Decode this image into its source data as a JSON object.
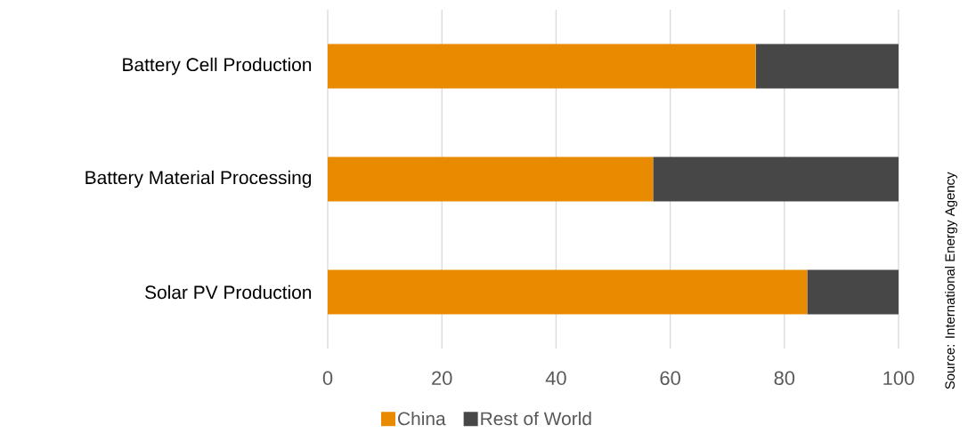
{
  "chart_data": {
    "type": "bar",
    "orientation": "horizontal",
    "stacked": true,
    "categories": [
      "Battery Cell Production",
      "Battery Material Processing",
      "Solar PV Production"
    ],
    "series": [
      {
        "name": "China",
        "color": "#e98b00",
        "values": [
          75,
          57,
          84
        ]
      },
      {
        "name": "Rest of World",
        "color": "#474747",
        "values": [
          25,
          43,
          16
        ]
      }
    ],
    "xlim": [
      0,
      100
    ],
    "xticks": [
      0,
      20,
      40,
      60,
      80,
      100
    ],
    "grid": "x",
    "legend": "bottom",
    "annotations": [
      "Source: International Energy Agency"
    ]
  }
}
